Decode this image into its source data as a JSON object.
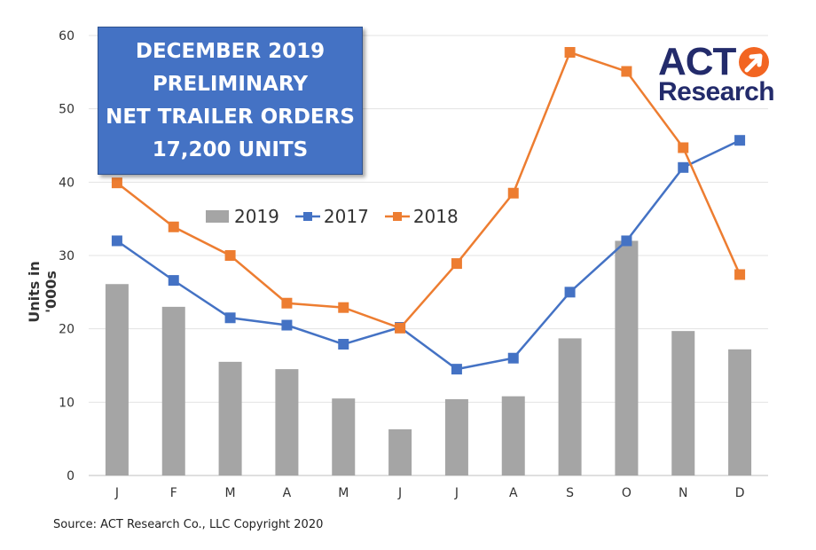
{
  "chart_data": {
    "type": "bar+line",
    "ylabel": "Units in '000s",
    "xlabel": "",
    "ylim": [
      0,
      60
    ],
    "yticks": [
      0,
      10,
      20,
      30,
      40,
      50,
      60
    ],
    "grid": true,
    "categories": [
      "J",
      "F",
      "M",
      "A",
      "M",
      "J",
      "J",
      "A",
      "S",
      "O",
      "N",
      "D"
    ],
    "legend_placement": "top-center",
    "series": [
      {
        "name": "2019",
        "type": "bar",
        "color": "#A5A5A5",
        "values": [
          26.1,
          23.0,
          15.5,
          14.5,
          10.5,
          6.3,
          10.4,
          10.8,
          18.7,
          32.0,
          19.7,
          17.2
        ]
      },
      {
        "name": "2017",
        "type": "line",
        "color": "#4472C4",
        "values": [
          32.0,
          26.6,
          21.5,
          20.5,
          17.9,
          20.2,
          14.5,
          16.0,
          25.0,
          32.0,
          42.0,
          45.7
        ]
      },
      {
        "name": "2018",
        "type": "line",
        "color": "#ED7D31",
        "values": [
          39.9,
          33.9,
          30.0,
          23.5,
          22.9,
          20.1,
          28.9,
          38.5,
          57.7,
          55.1,
          44.7,
          27.4
        ]
      }
    ]
  },
  "title_box": {
    "lines": [
      "DECEMBER 2019",
      "PRELIMINARY",
      "NET TRAILER ORDERS",
      "17,200 UNITS"
    ],
    "color": "#4472C4"
  },
  "logo": {
    "line1": "ACT",
    "line2": "Research",
    "accent": "#F26522"
  },
  "source": "Source: ACT Research Co., LLC  Copyright 2020"
}
